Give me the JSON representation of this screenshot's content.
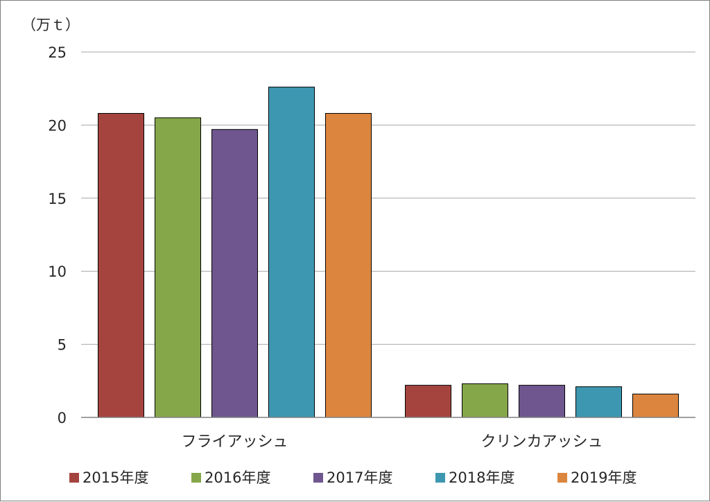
{
  "chart_data": {
    "type": "bar",
    "unit_label": "（万ｔ）",
    "categories": [
      "フライアッシュ",
      "クリンカアッシュ"
    ],
    "series": [
      {
        "name": "2015年度",
        "color": "#a5443f",
        "values": [
          20.8,
          2.2
        ]
      },
      {
        "name": "2016年度",
        "color": "#86a64a",
        "values": [
          20.5,
          2.3
        ]
      },
      {
        "name": "2017年度",
        "color": "#6f568f",
        "values": [
          19.7,
          2.2
        ]
      },
      {
        "name": "2018年度",
        "color": "#3e97b0",
        "values": [
          22.6,
          2.1
        ]
      },
      {
        "name": "2019年度",
        "color": "#dc853e",
        "values": [
          20.8,
          1.6
        ]
      }
    ],
    "ylim": [
      0,
      25
    ],
    "yticks": [
      0,
      5,
      10,
      15,
      20,
      25
    ],
    "grid": true,
    "legend": "bottom"
  }
}
